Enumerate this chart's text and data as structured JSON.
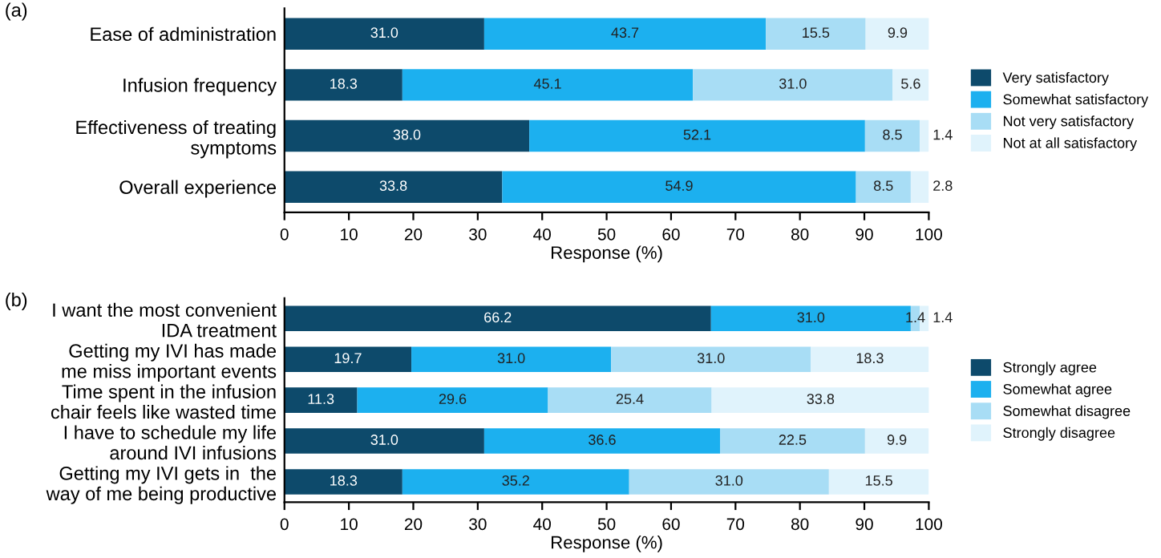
{
  "chart_data": [
    {
      "type": "bar",
      "orientation": "horizontal",
      "stacked": true,
      "legend": "right",
      "grid": false,
      "xlabel": "Response (%)",
      "xlim": [
        0,
        100
      ],
      "xticks": [
        0,
        10,
        20,
        30,
        40,
        50,
        60,
        70,
        80,
        90,
        100
      ],
      "annotations": [
        "(a)"
      ],
      "categories": [
        "Ease of administration",
        "Infusion frequency",
        "Effectiveness of treating\nsymptoms",
        "Overall experience"
      ],
      "series": [
        {
          "name": "Very satisfactory",
          "color": "#0d4a6b",
          "values": [
            31.0,
            18.3,
            38.0,
            33.8
          ],
          "value_labels": [
            "31.0",
            "18.3",
            "38.0",
            "33.8"
          ]
        },
        {
          "name": "Somewhat satisfactory",
          "color": "#1cb0ef",
          "values": [
            43.7,
            45.1,
            52.1,
            54.9
          ],
          "value_labels": [
            "43.7",
            "45.1",
            "52.1",
            "54.9"
          ]
        },
        {
          "name": "Not very satisfactory",
          "color": "#a8ddf5",
          "values": [
            15.5,
            31.0,
            8.5,
            8.5
          ],
          "value_labels": [
            "15.5",
            "31.0",
            "8.5",
            "8.5"
          ]
        },
        {
          "name": "Not at all satisfactory",
          "color": "#e0f3fc",
          "values": [
            9.9,
            5.6,
            1.4,
            2.8
          ],
          "value_labels": [
            "9.9",
            "5.6",
            "1.4",
            "2.8"
          ]
        }
      ]
    },
    {
      "type": "bar",
      "orientation": "horizontal",
      "stacked": true,
      "legend": "right",
      "grid": false,
      "xlabel": "Response (%)",
      "xlim": [
        0,
        100
      ],
      "xticks": [
        0,
        10,
        20,
        30,
        40,
        50,
        60,
        70,
        80,
        90,
        100
      ],
      "annotations": [
        "(b)"
      ],
      "categories": [
        "I want the most convenient\nIDA treatment",
        "Getting my IVI has made\nme miss important events",
        "Time spent in the infusion\nchair feels like wasted time",
        "I have to schedule my life\naround IVI infusions",
        "Getting my IVI gets in  the\nway of me being productive"
      ],
      "series": [
        {
          "name": "Strongly agree",
          "color": "#0d4a6b",
          "values": [
            66.2,
            19.7,
            11.3,
            31.0,
            18.3
          ],
          "value_labels": [
            "66.2",
            "19.7",
            "11.3",
            "31.0",
            "18.3"
          ]
        },
        {
          "name": "Somewhat agree",
          "color": "#1cb0ef",
          "values": [
            31.0,
            31.0,
            29.6,
            36.6,
            35.2
          ],
          "value_labels": [
            "31.0",
            "31.0",
            "29.6",
            "36.6",
            "35.2"
          ]
        },
        {
          "name": "Somewhat disagree",
          "color": "#a8ddf5",
          "values": [
            1.4,
            31.0,
            25.4,
            22.5,
            31.0
          ],
          "value_labels": [
            "1.4",
            "31.0",
            "25.4",
            "22.5",
            "31.0"
          ]
        },
        {
          "name": "Strongly disagree",
          "color": "#e0f3fc",
          "values": [
            1.4,
            18.3,
            33.8,
            9.9,
            15.5
          ],
          "value_labels": [
            "1.4",
            "18.3",
            "33.8",
            "9.9",
            "15.5"
          ]
        }
      ]
    }
  ]
}
